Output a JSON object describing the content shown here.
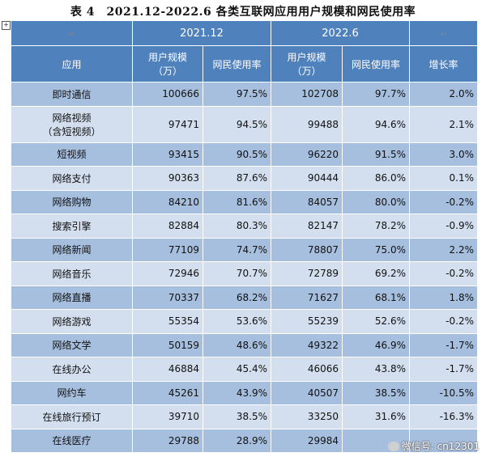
{
  "title": "表 4　2021.12-2022.6 各类互联网应用用户规模和网民使用率",
  "headers": {
    "period1": "2021.12",
    "period2": "2022.6",
    "app": "应用",
    "users": "用户规模\n（万）",
    "rate": "网民使用率",
    "growth": "增长率"
  },
  "rows": [
    {
      "app": "即时通信",
      "u1": "100666",
      "r1": "97.5%",
      "u2": "102708",
      "r2": "97.7%",
      "g": "2.0%"
    },
    {
      "app": "网络视频\n（含短视频）",
      "u1": "97471",
      "r1": "94.5%",
      "u2": "99488",
      "r2": "94.6%",
      "g": "2.1%"
    },
    {
      "app": "短视频",
      "u1": "93415",
      "r1": "90.5%",
      "u2": "96220",
      "r2": "91.5%",
      "g": "3.0%"
    },
    {
      "app": "网络支付",
      "u1": "90363",
      "r1": "87.6%",
      "u2": "90444",
      "r2": "86.0%",
      "g": "0.1%"
    },
    {
      "app": "网络购物",
      "u1": "84210",
      "r1": "81.6%",
      "u2": "84057",
      "r2": "80.0%",
      "g": "-0.2%"
    },
    {
      "app": "搜索引擎",
      "u1": "82884",
      "r1": "80.3%",
      "u2": "82147",
      "r2": "78.2%",
      "g": "-0.9%"
    },
    {
      "app": "网络新闻",
      "u1": "77109",
      "r1": "74.7%",
      "u2": "78807",
      "r2": "75.0%",
      "g": "2.2%"
    },
    {
      "app": "网络音乐",
      "u1": "72946",
      "r1": "70.7%",
      "u2": "72789",
      "r2": "69.2%",
      "g": "-0.2%"
    },
    {
      "app": "网络直播",
      "u1": "70337",
      "r1": "68.2%",
      "u2": "71627",
      "r2": "68.1%",
      "g": "1.8%"
    },
    {
      "app": "网络游戏",
      "u1": "55354",
      "r1": "53.6%",
      "u2": "55239",
      "r2": "52.6%",
      "g": "-0.2%"
    },
    {
      "app": "网络文学",
      "u1": "50159",
      "r1": "48.6%",
      "u2": "49322",
      "r2": "46.9%",
      "g": "-1.7%"
    },
    {
      "app": "在线办公",
      "u1": "46884",
      "r1": "45.4%",
      "u2": "46066",
      "r2": "43.8%",
      "g": "-1.7%"
    },
    {
      "app": "网约车",
      "u1": "45261",
      "r1": "43.9%",
      "u2": "40507",
      "r2": "38.5%",
      "g": "-10.5%"
    },
    {
      "app": "在线旅行预订",
      "u1": "39710",
      "r1": "38.5%",
      "u2": "33250",
      "r2": "31.6%",
      "g": "-16.3%"
    },
    {
      "app": "在线医疗",
      "u1": "29788",
      "r1": "28.9%",
      "u2": "29984",
      "r2": "",
      "g": ""
    }
  ],
  "watermark": "微信号: cn12301",
  "colors": {
    "header": "#4f81bd",
    "row_dark": "#a7bfde",
    "row_light": "#d3dfee"
  }
}
